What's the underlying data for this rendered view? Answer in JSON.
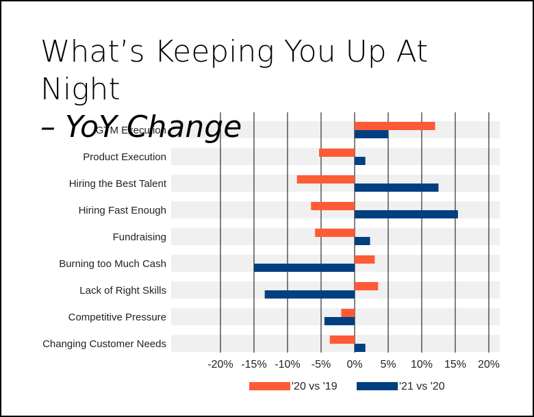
{
  "slide": {
    "title_line1": "What’s Keeping You Up At",
    "title_line2": "Night",
    "title_line3": "– YoY Change"
  },
  "chart_data": {
    "type": "bar",
    "orientation": "horizontal",
    "categories": [
      "GTM Execution",
      "Product Execution",
      "Hiring the Best Talent",
      "Hiring Fast Enough",
      "Fundraising",
      "Burning too Much Cash",
      "Lack of Right Skills",
      "Competitive Pressure",
      "Changing Customer Needs"
    ],
    "series": [
      {
        "name": "'20 vs '19",
        "color": "#FF5A36",
        "values": [
          12,
          -5.3,
          -8.6,
          -6.5,
          -5.9,
          3,
          3.5,
          -2,
          -3.7
        ]
      },
      {
        "name": "'21 vs '20",
        "color": "#004080",
        "values": [
          5,
          1.6,
          12.5,
          15.4,
          2.3,
          -15,
          -13.4,
          -4.5,
          1.6
        ]
      }
    ],
    "xlim": [
      -20,
      20
    ],
    "x_ticks": [
      "-20%",
      "-15%",
      "-10%",
      "-5%",
      "0%",
      "5%",
      "10%",
      "15%",
      "20%"
    ],
    "x_tick_values": [
      -20,
      -15,
      -10,
      -5,
      0,
      5,
      10,
      15,
      20
    ],
    "grid": "vertical",
    "legend_position": "bottom",
    "colors": {
      "band": "#F0F0F0",
      "gridline": "#000000"
    }
  }
}
